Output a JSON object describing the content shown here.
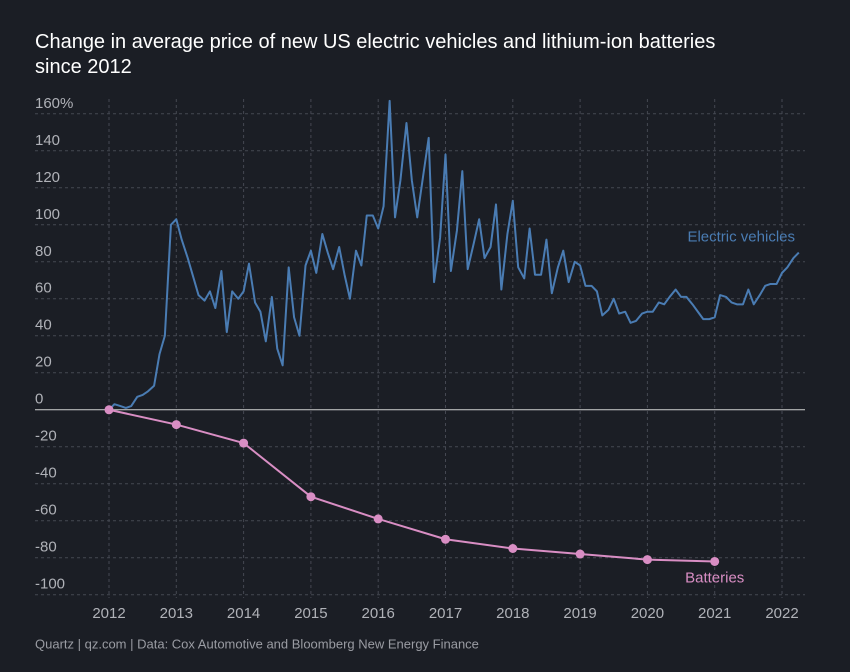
{
  "chart_data": {
    "type": "line",
    "title": "Change in average price of new US electric vehicles and lithium-ion batteries since 2012",
    "source": "Quartz | qz.com | Data: Cox Automotive and Bloomberg New Energy Finance",
    "xlim": [
      2011.6,
      2022.35
    ],
    "xticks": [
      2012,
      2013,
      2014,
      2015,
      2016,
      2017,
      2018,
      2019,
      2020,
      2021,
      2022
    ],
    "ylim": [
      -105,
      168
    ],
    "yticks": [
      {
        "value": 160,
        "label": "160%"
      },
      140,
      120,
      100,
      80,
      60,
      40,
      20,
      0,
      -20,
      -40,
      -60,
      -80,
      -100
    ],
    "grid": true,
    "series": [
      {
        "name": "Electric vehicles",
        "color": "#4a7cb3",
        "x": [
          2012,
          2012.08,
          2012.17,
          2012.25,
          2012.33,
          2012.42,
          2012.5,
          2012.58,
          2012.67,
          2012.75,
          2012.83,
          2012.92,
          2013,
          2013.08,
          2013.17,
          2013.25,
          2013.33,
          2013.42,
          2013.5,
          2013.58,
          2013.67,
          2013.75,
          2013.83,
          2013.92,
          2014,
          2014.08,
          2014.17,
          2014.25,
          2014.33,
          2014.42,
          2014.5,
          2014.58,
          2014.67,
          2014.75,
          2014.83,
          2014.92,
          2015,
          2015.08,
          2015.17,
          2015.25,
          2015.33,
          2015.42,
          2015.5,
          2015.58,
          2015.67,
          2015.75,
          2015.83,
          2015.92,
          2016,
          2016.08,
          2016.17,
          2016.25,
          2016.33,
          2016.42,
          2016.5,
          2016.58,
          2016.67,
          2016.75,
          2016.83,
          2016.92,
          2017,
          2017.08,
          2017.17,
          2017.25,
          2017.33,
          2017.42,
          2017.5,
          2017.58,
          2017.67,
          2017.75,
          2017.83,
          2017.92,
          2018,
          2018.08,
          2018.17,
          2018.25,
          2018.33,
          2018.42,
          2018.5,
          2018.58,
          2018.67,
          2018.75,
          2018.83,
          2018.92,
          2019,
          2019.08,
          2019.17,
          2019.25,
          2019.33,
          2019.42,
          2019.5,
          2019.58,
          2019.67,
          2019.75,
          2019.83,
          2019.92,
          2020,
          2020.08,
          2020.17,
          2020.25,
          2020.33,
          2020.42,
          2020.5,
          2020.58,
          2020.67,
          2020.75,
          2020.83,
          2020.92,
          2021,
          2021.08,
          2021.17,
          2021.25,
          2021.33,
          2021.42,
          2021.5,
          2021.58,
          2021.67,
          2021.75,
          2021.83,
          2021.92,
          2022,
          2022.08,
          2022.17,
          2022.25
        ],
        "values": [
          0,
          3,
          2,
          1,
          2,
          7,
          8,
          10,
          13,
          30,
          40,
          100,
          103,
          92,
          82,
          72,
          62,
          59,
          64,
          55,
          75,
          42,
          64,
          60,
          64,
          79,
          58,
          53,
          37,
          61,
          33,
          24,
          77,
          50,
          40,
          78,
          86,
          74,
          95,
          85,
          76,
          88,
          73,
          60,
          86,
          78,
          105,
          105,
          98,
          110,
          167,
          104,
          124,
          155,
          124,
          104,
          127,
          147,
          69,
          93,
          138,
          75,
          97,
          129,
          76,
          90,
          103,
          82,
          88,
          111,
          65,
          95,
          113,
          77,
          71,
          98,
          73,
          73,
          92,
          63,
          77,
          86,
          69,
          80,
          78,
          67,
          67,
          64,
          51,
          54,
          60,
          52,
          53,
          47,
          48,
          52,
          53,
          53,
          58,
          57,
          61,
          65,
          61,
          61,
          57,
          53,
          49,
          49,
          50,
          62,
          61,
          58,
          57,
          57,
          65,
          57,
          62,
          67,
          68,
          68,
          74,
          77,
          82,
          85
        ]
      },
      {
        "name": "Batteries",
        "color": "#d98ec4",
        "markers": true,
        "x": [
          2012,
          2013,
          2014,
          2015,
          2016,
          2017,
          2018,
          2019,
          2020,
          2021
        ],
        "values": [
          0,
          -8,
          -18,
          -47,
          -59,
          -70,
          -75,
          -78,
          -81,
          -82
        ]
      }
    ]
  }
}
